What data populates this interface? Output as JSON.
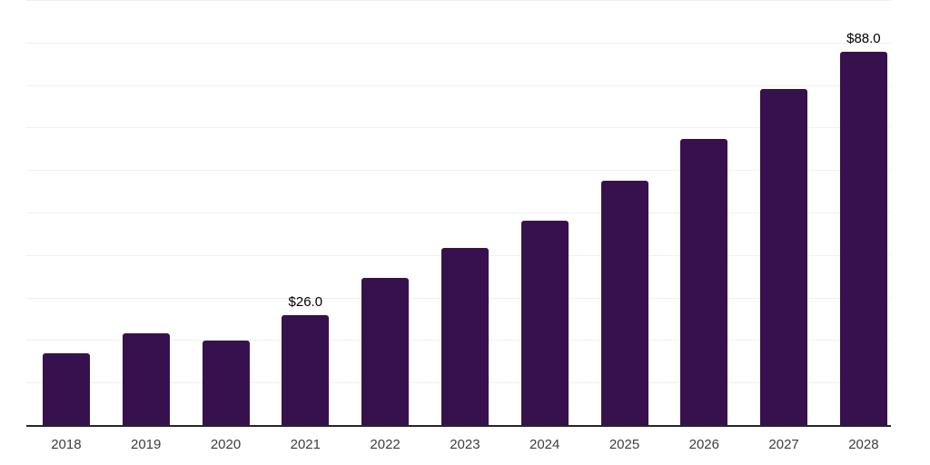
{
  "chart_data": {
    "type": "bar",
    "title": "",
    "xlabel": "",
    "ylabel": "",
    "categories": [
      "2018",
      "2019",
      "2020",
      "2021",
      "2022",
      "2023",
      "2024",
      "2025",
      "2026",
      "2027",
      "2028"
    ],
    "values": [
      17.0,
      21.8,
      20.0,
      26.0,
      34.8,
      41.8,
      48.3,
      57.8,
      67.5,
      79.2,
      88.0
    ],
    "data_labels": {
      "3": "$26.0",
      "10": "$88.0"
    },
    "currency_prefix": "$",
    "ylim": [
      0,
      100
    ],
    "gridline_step": 10,
    "grid": "horizontal",
    "y_tick_labels_visible": false,
    "legend_position": "none",
    "colors": {
      "bar": "#36114E",
      "gridline": "#F0F0F0",
      "axis_line": "#262626",
      "category_label": "#3D3D3D",
      "value_label": "#000000",
      "background": "#FFFFFF"
    }
  }
}
